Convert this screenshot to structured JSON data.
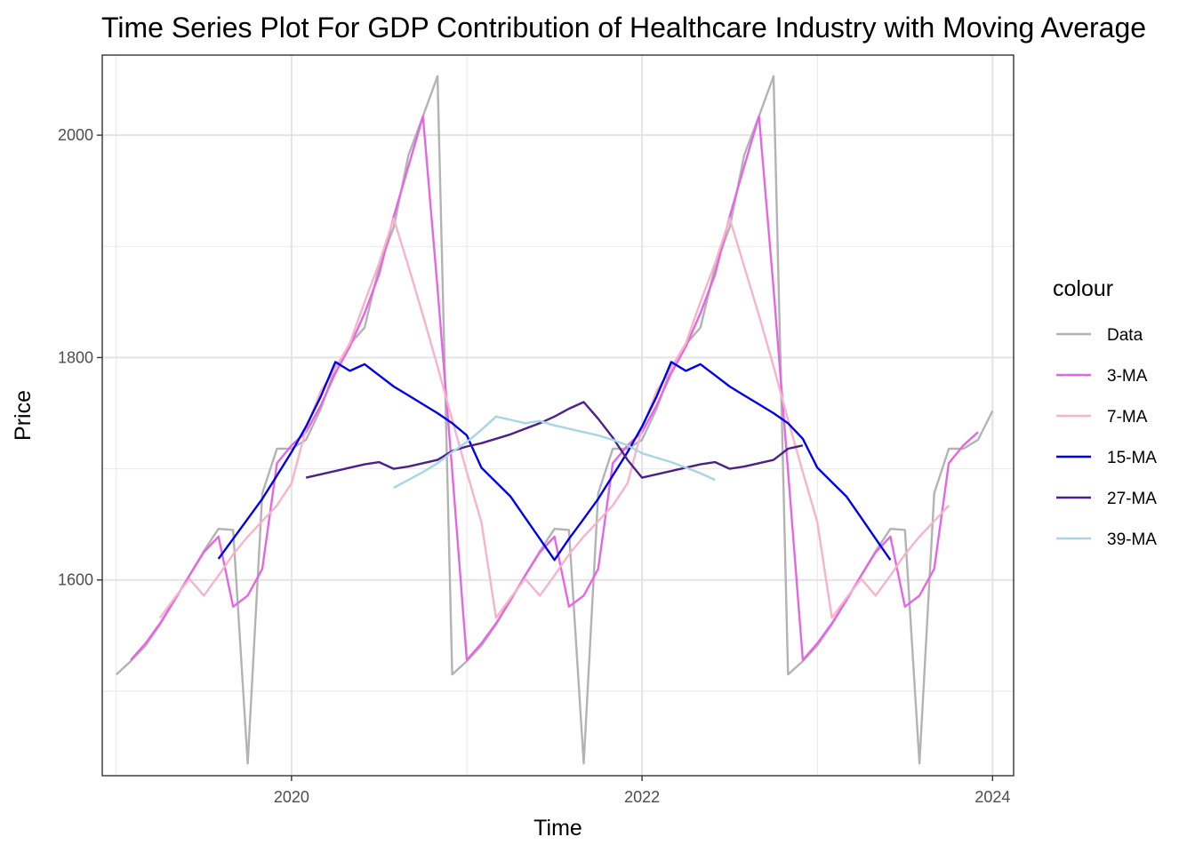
{
  "chart_data": {
    "type": "line",
    "title": "Time Series Plot For GDP Contribution of Healthcare Industry with Moving Average",
    "xlabel": "Time",
    "ylabel": "Price",
    "xlim": [
      2018.92,
      2024.12
    ],
    "ylim": [
      1424,
      2072
    ],
    "x_ticks": [
      2020,
      2022,
      2024
    ],
    "y_ticks": [
      1600,
      1800,
      2000
    ],
    "grid": true,
    "legend": {
      "title": "colour",
      "position": "right"
    },
    "series": [
      {
        "name": "Data",
        "color": "#b3b3b3",
        "points": [
          [
            2019.0,
            1515
          ],
          [
            2019.083,
            1527
          ],
          [
            2019.167,
            1541
          ],
          [
            2019.25,
            1560
          ],
          [
            2019.333,
            1582
          ],
          [
            2019.417,
            1604
          ],
          [
            2019.5,
            1626
          ],
          [
            2019.583,
            1646
          ],
          [
            2019.667,
            1645
          ],
          [
            2019.75,
            1435
          ],
          [
            2019.833,
            1678
          ],
          [
            2019.917,
            1718
          ],
          [
            2020.0,
            1718
          ],
          [
            2020.083,
            1726
          ],
          [
            2020.167,
            1754
          ],
          [
            2020.25,
            1791
          ],
          [
            2020.333,
            1812
          ],
          [
            2020.417,
            1827
          ],
          [
            2020.5,
            1882
          ],
          [
            2020.583,
            1917
          ],
          [
            2020.667,
            1982
          ],
          [
            2020.75,
            2017
          ],
          [
            2020.833,
            2053
          ],
          [
            2020.917,
            1515
          ],
          [
            2021.0,
            1527
          ],
          [
            2021.083,
            1541
          ],
          [
            2021.167,
            1560
          ],
          [
            2021.25,
            1582
          ],
          [
            2021.333,
            1604
          ],
          [
            2021.417,
            1626
          ],
          [
            2021.5,
            1646
          ],
          [
            2021.583,
            1645
          ],
          [
            2021.667,
            1435
          ],
          [
            2021.75,
            1678
          ],
          [
            2021.833,
            1718
          ],
          [
            2021.917,
            1718
          ],
          [
            2022.0,
            1726
          ],
          [
            2022.083,
            1754
          ],
          [
            2022.167,
            1791
          ],
          [
            2022.25,
            1812
          ],
          [
            2022.333,
            1827
          ],
          [
            2022.417,
            1882
          ],
          [
            2022.5,
            1917
          ],
          [
            2022.583,
            1982
          ],
          [
            2022.667,
            2017
          ],
          [
            2022.75,
            2053
          ],
          [
            2022.833,
            1515
          ],
          [
            2022.917,
            1527
          ],
          [
            2023.0,
            1541
          ],
          [
            2023.083,
            1560
          ],
          [
            2023.167,
            1582
          ],
          [
            2023.25,
            1604
          ],
          [
            2023.333,
            1626
          ],
          [
            2023.417,
            1646
          ],
          [
            2023.5,
            1645
          ],
          [
            2023.583,
            1435
          ],
          [
            2023.667,
            1678
          ],
          [
            2023.75,
            1718
          ],
          [
            2023.833,
            1718
          ],
          [
            2023.917,
            1726
          ],
          [
            2024.0,
            1752
          ]
        ]
      },
      {
        "name": "3-MA",
        "color": "#e566e5",
        "points": [
          [
            2019.083,
            1528
          ],
          [
            2019.167,
            1543
          ],
          [
            2019.25,
            1561
          ],
          [
            2019.333,
            1582
          ],
          [
            2019.417,
            1604
          ],
          [
            2019.5,
            1625
          ],
          [
            2019.583,
            1639
          ],
          [
            2019.667,
            1576
          ],
          [
            2019.75,
            1586
          ],
          [
            2019.833,
            1610
          ],
          [
            2019.917,
            1705
          ],
          [
            2020.0,
            1721
          ],
          [
            2020.083,
            1733
          ],
          [
            2020.167,
            1757
          ],
          [
            2020.25,
            1786
          ],
          [
            2020.333,
            1810
          ],
          [
            2020.417,
            1840
          ],
          [
            2020.5,
            1875
          ],
          [
            2020.583,
            1927
          ],
          [
            2020.667,
            1972
          ],
          [
            2020.75,
            2017
          ],
          [
            2020.833,
            1862
          ],
          [
            2020.917,
            1698
          ],
          [
            2021.0,
            1528
          ],
          [
            2021.083,
            1543
          ],
          [
            2021.167,
            1561
          ],
          [
            2021.25,
            1582
          ],
          [
            2021.333,
            1604
          ],
          [
            2021.417,
            1625
          ],
          [
            2021.5,
            1639
          ],
          [
            2021.583,
            1576
          ],
          [
            2021.667,
            1586
          ],
          [
            2021.75,
            1610
          ],
          [
            2021.833,
            1705
          ],
          [
            2021.917,
            1721
          ],
          [
            2022.0,
            1733
          ],
          [
            2022.083,
            1757
          ],
          [
            2022.167,
            1786
          ],
          [
            2022.25,
            1810
          ],
          [
            2022.333,
            1840
          ],
          [
            2022.417,
            1875
          ],
          [
            2022.5,
            1927
          ],
          [
            2022.583,
            1972
          ],
          [
            2022.667,
            2017
          ],
          [
            2022.75,
            1862
          ],
          [
            2022.833,
            1698
          ],
          [
            2022.917,
            1528
          ],
          [
            2023.0,
            1543
          ],
          [
            2023.083,
            1561
          ],
          [
            2023.167,
            1582
          ],
          [
            2023.25,
            1604
          ],
          [
            2023.333,
            1625
          ],
          [
            2023.417,
            1639
          ],
          [
            2023.5,
            1576
          ],
          [
            2023.583,
            1586
          ],
          [
            2023.667,
            1610
          ],
          [
            2023.75,
            1705
          ],
          [
            2023.833,
            1721
          ],
          [
            2023.917,
            1733
          ]
        ]
      },
      {
        "name": "7-MA",
        "color": "#f7b3c8",
        "points": [
          [
            2019.25,
            1566
          ],
          [
            2019.333,
            1584
          ],
          [
            2019.417,
            1601
          ],
          [
            2019.5,
            1586
          ],
          [
            2019.583,
            1604
          ],
          [
            2019.667,
            1623
          ],
          [
            2019.75,
            1639
          ],
          [
            2019.833,
            1653
          ],
          [
            2019.917,
            1667
          ],
          [
            2020.0,
            1687
          ],
          [
            2020.083,
            1736
          ],
          [
            2020.167,
            1770
          ],
          [
            2020.25,
            1790
          ],
          [
            2020.333,
            1813
          ],
          [
            2020.417,
            1850
          ],
          [
            2020.5,
            1885
          ],
          [
            2020.583,
            1925
          ],
          [
            2020.667,
            1882
          ],
          [
            2020.75,
            1838
          ],
          [
            2020.833,
            1792
          ],
          [
            2020.917,
            1744
          ],
          [
            2021.0,
            1697
          ],
          [
            2021.083,
            1652
          ],
          [
            2021.167,
            1566
          ],
          [
            2021.25,
            1584
          ],
          [
            2021.333,
            1601
          ],
          [
            2021.417,
            1586
          ],
          [
            2021.5,
            1604
          ],
          [
            2021.583,
            1623
          ],
          [
            2021.667,
            1639
          ],
          [
            2021.75,
            1653
          ],
          [
            2021.833,
            1667
          ],
          [
            2021.917,
            1687
          ],
          [
            2022.0,
            1736
          ],
          [
            2022.083,
            1770
          ],
          [
            2022.167,
            1790
          ],
          [
            2022.25,
            1813
          ],
          [
            2022.333,
            1850
          ],
          [
            2022.417,
            1885
          ],
          [
            2022.5,
            1925
          ],
          [
            2022.583,
            1882
          ],
          [
            2022.667,
            1838
          ],
          [
            2022.75,
            1792
          ],
          [
            2022.833,
            1744
          ],
          [
            2022.917,
            1697
          ],
          [
            2023.0,
            1652
          ],
          [
            2023.083,
            1566
          ],
          [
            2023.167,
            1584
          ],
          [
            2023.25,
            1601
          ],
          [
            2023.333,
            1586
          ],
          [
            2023.417,
            1604
          ],
          [
            2023.5,
            1623
          ],
          [
            2023.583,
            1639
          ],
          [
            2023.667,
            1653
          ],
          [
            2023.75,
            1667
          ]
        ]
      },
      {
        "name": "15-MA",
        "color": "#0000ee",
        "points": [
          [
            2019.583,
            1619
          ],
          [
            2019.667,
            1637
          ],
          [
            2019.75,
            1655
          ],
          [
            2019.833,
            1673
          ],
          [
            2019.917,
            1694
          ],
          [
            2020.0,
            1715
          ],
          [
            2020.083,
            1738
          ],
          [
            2020.167,
            1765
          ],
          [
            2020.25,
            1796
          ],
          [
            2020.333,
            1788
          ],
          [
            2020.417,
            1794
          ],
          [
            2020.5,
            1784
          ],
          [
            2020.583,
            1774
          ],
          [
            2020.667,
            1766
          ],
          [
            2020.75,
            1758
          ],
          [
            2020.833,
            1750
          ],
          [
            2020.917,
            1741
          ],
          [
            2021.0,
            1730
          ],
          [
            2021.083,
            1701
          ],
          [
            2021.167,
            1688
          ],
          [
            2021.25,
            1675
          ],
          [
            2021.333,
            1656
          ],
          [
            2021.417,
            1637
          ],
          [
            2021.5,
            1618
          ],
          [
            2021.583,
            1637
          ],
          [
            2021.667,
            1655
          ],
          [
            2021.75,
            1673
          ],
          [
            2021.833,
            1694
          ],
          [
            2021.917,
            1715
          ],
          [
            2022.0,
            1738
          ],
          [
            2022.083,
            1765
          ],
          [
            2022.167,
            1796
          ],
          [
            2022.25,
            1788
          ],
          [
            2022.333,
            1794
          ],
          [
            2022.417,
            1784
          ],
          [
            2022.5,
            1774
          ],
          [
            2022.583,
            1766
          ],
          [
            2022.667,
            1758
          ],
          [
            2022.75,
            1750
          ],
          [
            2022.833,
            1741
          ],
          [
            2022.917,
            1727
          ],
          [
            2023.0,
            1701
          ],
          [
            2023.083,
            1688
          ],
          [
            2023.167,
            1675
          ],
          [
            2023.25,
            1656
          ],
          [
            2023.333,
            1637
          ],
          [
            2023.417,
            1618
          ]
        ]
      },
      {
        "name": "27-MA",
        "color": "#4c1f8a",
        "points": [
          [
            2020.083,
            1692
          ],
          [
            2020.167,
            1695
          ],
          [
            2020.25,
            1698
          ],
          [
            2020.333,
            1701
          ],
          [
            2020.417,
            1704
          ],
          [
            2020.5,
            1706
          ],
          [
            2020.583,
            1700
          ],
          [
            2020.667,
            1702
          ],
          [
            2020.75,
            1705
          ],
          [
            2020.833,
            1708
          ],
          [
            2020.917,
            1716
          ],
          [
            2021.0,
            1720
          ],
          [
            2021.083,
            1723
          ],
          [
            2021.167,
            1727
          ],
          [
            2021.25,
            1731
          ],
          [
            2021.333,
            1736
          ],
          [
            2021.417,
            1741
          ],
          [
            2021.5,
            1747
          ],
          [
            2021.583,
            1754
          ],
          [
            2021.667,
            1760
          ],
          [
            2021.75,
            1745
          ],
          [
            2021.833,
            1728
          ],
          [
            2021.917,
            1708
          ],
          [
            2022.0,
            1692
          ],
          [
            2022.083,
            1695
          ],
          [
            2022.167,
            1698
          ],
          [
            2022.25,
            1701
          ],
          [
            2022.333,
            1704
          ],
          [
            2022.417,
            1706
          ],
          [
            2022.5,
            1700
          ],
          [
            2022.583,
            1702
          ],
          [
            2022.667,
            1705
          ],
          [
            2022.75,
            1708
          ],
          [
            2022.833,
            1718
          ],
          [
            2022.917,
            1721
          ]
        ]
      },
      {
        "name": "39-MA",
        "color": "#a6d5e5",
        "points": [
          [
            2020.583,
            1683
          ],
          [
            2020.667,
            1690
          ],
          [
            2020.75,
            1697
          ],
          [
            2020.833,
            1705
          ],
          [
            2020.917,
            1715
          ],
          [
            2021.0,
            1724
          ],
          [
            2021.083,
            1735
          ],
          [
            2021.167,
            1747
          ],
          [
            2021.25,
            1744
          ],
          [
            2021.333,
            1741
          ],
          [
            2021.417,
            1743
          ],
          [
            2021.5,
            1739
          ],
          [
            2021.583,
            1736
          ],
          [
            2021.667,
            1733
          ],
          [
            2021.75,
            1730
          ],
          [
            2021.833,
            1726
          ],
          [
            2021.917,
            1721
          ],
          [
            2022.0,
            1714
          ],
          [
            2022.083,
            1710
          ],
          [
            2022.167,
            1706
          ],
          [
            2022.25,
            1701
          ],
          [
            2022.333,
            1696
          ],
          [
            2022.417,
            1690
          ]
        ]
      }
    ]
  }
}
